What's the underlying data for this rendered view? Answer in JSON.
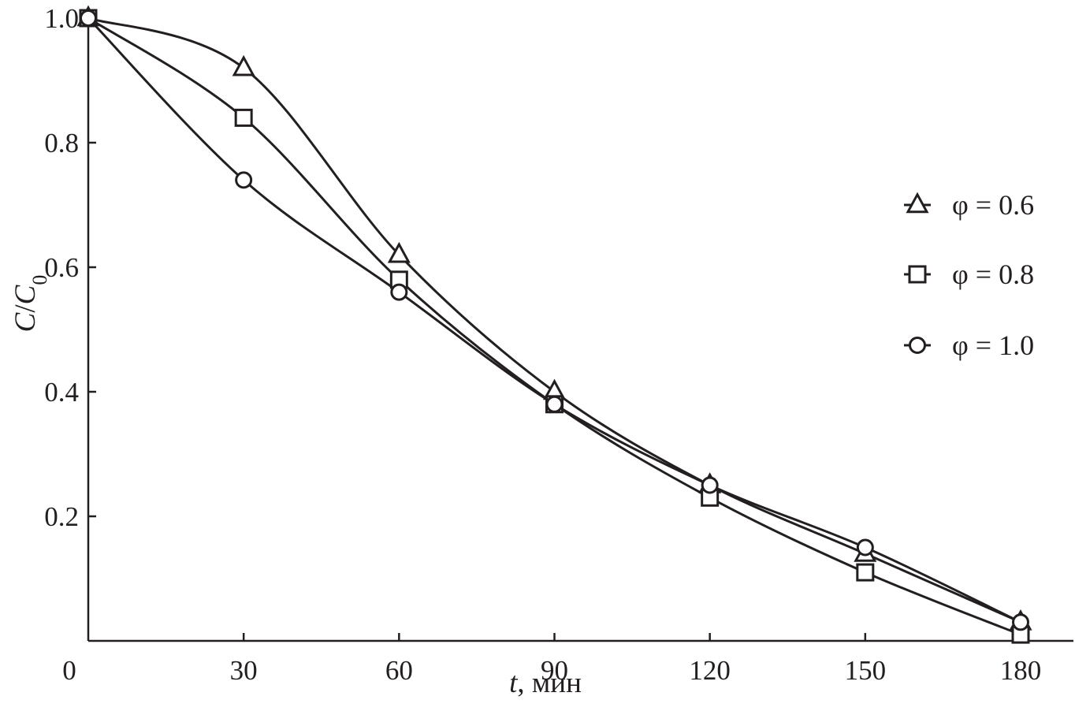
{
  "chart_data": {
    "type": "line",
    "xlabel": {
      "var": "t",
      "unit": ", мин"
    },
    "ylabel": {
      "num": "C",
      "slash": "/",
      "den": "C",
      "sub": "0"
    },
    "xlim": [
      0,
      180
    ],
    "ylim": [
      0,
      1.0
    ],
    "xticks": [
      0,
      30,
      60,
      90,
      120,
      150,
      180
    ],
    "xtick_labels": [
      "0",
      "30",
      "60",
      "90",
      "120",
      "150",
      "180"
    ],
    "yticks": [
      0.2,
      0.4,
      0.6,
      0.8,
      1.0
    ],
    "ytick_labels": [
      "0.2",
      "0.4",
      "0.6",
      "0.8",
      "1.0"
    ],
    "grid": false,
    "legend_position": "right",
    "series": [
      {
        "name": "φ = 0.6",
        "marker": "triangle",
        "x": [
          0,
          30,
          60,
          90,
          120,
          150,
          180
        ],
        "values": [
          1.0,
          0.92,
          0.62,
          0.4,
          0.25,
          0.14,
          0.03
        ]
      },
      {
        "name": "φ = 0.8",
        "marker": "square",
        "x": [
          0,
          30,
          60,
          90,
          120,
          150,
          180
        ],
        "values": [
          1.0,
          0.84,
          0.58,
          0.38,
          0.23,
          0.11,
          0.01
        ]
      },
      {
        "name": "φ = 1.0",
        "marker": "circle",
        "x": [
          0,
          30,
          60,
          90,
          120,
          150,
          180
        ],
        "values": [
          1.0,
          0.74,
          0.56,
          0.38,
          0.25,
          0.15,
          0.03
        ]
      }
    ]
  },
  "colors": {
    "ink": "#231f20",
    "background": "#ffffff"
  }
}
